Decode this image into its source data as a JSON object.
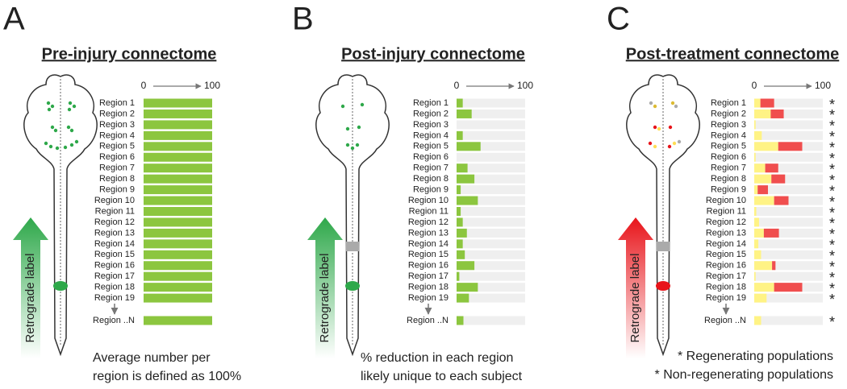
{
  "chart_data": [
    {
      "type": "bar",
      "panel": "A",
      "title": "Pre-injury connectome",
      "categories": [
        "Region 1",
        "Region 2",
        "Region 3",
        "Region 4",
        "Region 5",
        "Region 6",
        "Region 7",
        "Region 8",
        "Region 9",
        "Region 10",
        "Region 11",
        "Region 12",
        "Region 13",
        "Region 14",
        "Region 15",
        "Region 16",
        "Region 17",
        "Region 18",
        "Region 19",
        "Region ..N"
      ],
      "series": [
        {
          "color": "#8cc63f",
          "values": [
            100,
            100,
            100,
            100,
            100,
            100,
            100,
            100,
            100,
            100,
            100,
            100,
            100,
            100,
            100,
            100,
            100,
            100,
            100,
            100
          ]
        }
      ],
      "xlim": [
        0,
        100
      ],
      "xticks": [
        0,
        100
      ],
      "arrow_label": "Retrograde label",
      "arrow_color": "#2ea84a",
      "caption": [
        "Average number per",
        "region is defined as 100%"
      ]
    },
    {
      "type": "bar",
      "panel": "B",
      "title": "Post-injury connectome",
      "categories": [
        "Region 1",
        "Region 2",
        "Region 3",
        "Region 4",
        "Region 5",
        "Region 6",
        "Region 7",
        "Region 8",
        "Region 9",
        "Region 10",
        "Region 11",
        "Region 12",
        "Region 13",
        "Region 14",
        "Region 15",
        "Region 16",
        "Region 17",
        "Region 18",
        "Region 19",
        "Region ..N"
      ],
      "series": [
        {
          "color": "#8cc63f",
          "values": [
            9,
            22,
            0,
            9,
            35,
            0,
            16,
            26,
            6,
            31,
            6,
            9,
            15,
            9,
            12,
            26,
            4,
            31,
            18,
            10
          ]
        }
      ],
      "track_color": "#efefef",
      "xlim": [
        0,
        100
      ],
      "xticks": [
        0,
        100
      ],
      "arrow_label": "Retrograde label",
      "arrow_color": "#2ea84a",
      "caption": [
        "% reduction in each region",
        "likely unique to each subject"
      ]
    },
    {
      "type": "stacked_bar",
      "panel": "C",
      "title": "Post-treatment connectome",
      "categories": [
        "Region 1",
        "Region 2",
        "Region 3",
        "Region 4",
        "Region 5",
        "Region 6",
        "Region 7",
        "Region 8",
        "Region 9",
        "Region 10",
        "Region 11",
        "Region 12",
        "Region 13",
        "Region 14",
        "Region 15",
        "Region 16",
        "Region 17",
        "Region 18",
        "Region 19",
        "Region ..N"
      ],
      "series": [
        {
          "color": "#fff385",
          "values": [
            9,
            24,
            2,
            11,
            35,
            2,
            16,
            25,
            5,
            29,
            3,
            7,
            14,
            6,
            10,
            26,
            2,
            29,
            18,
            10
          ]
        },
        {
          "color": "#f04e4e",
          "values": [
            20,
            19,
            0,
            0,
            35,
            0,
            19,
            20,
            15,
            21,
            0,
            0,
            22,
            0,
            0,
            5,
            0,
            41,
            0,
            0
          ]
        }
      ],
      "track_color": "#efefef",
      "xlim": [
        0,
        100
      ],
      "xticks": [
        0,
        100
      ],
      "asterisk": "*",
      "asterisk_colors": [
        "#e8141a",
        "#e8141a",
        "#999999",
        "#999999",
        "#e8141a",
        "#999999",
        "#e8141a",
        "#e8141a",
        "#e8141a",
        "#e8141a",
        "#999999",
        "#999999",
        "#e8141a",
        "#999999",
        "#999999",
        "#e8141a",
        "#999999",
        "#e8141a",
        "#999999",
        "#999999"
      ],
      "arrow_label": "Retrograde label",
      "arrow_color": "#e8141a",
      "legend": [
        {
          "text": "* Regenerating populations",
          "color": "#e8141a"
        },
        {
          "text": "* Non-regenerating populations",
          "color": "#999999"
        }
      ]
    }
  ]
}
